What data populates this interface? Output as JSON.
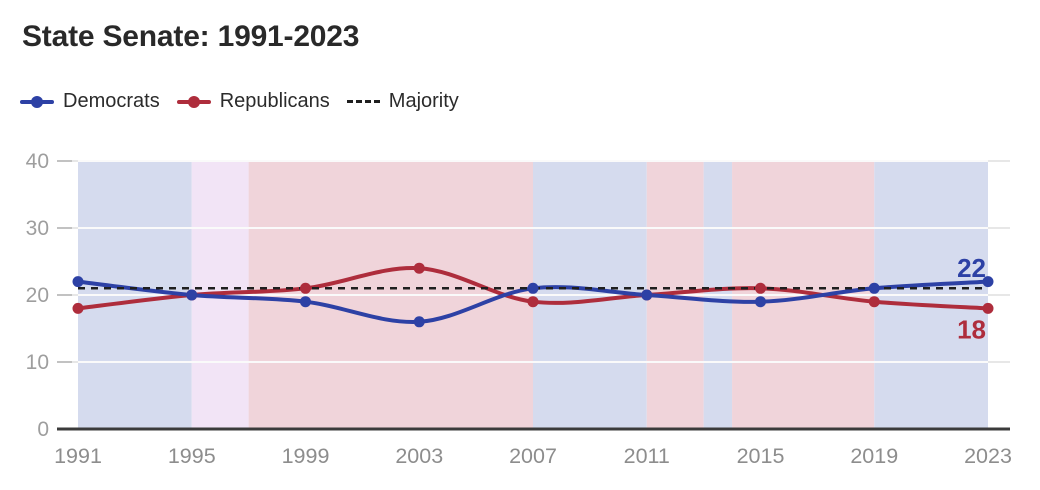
{
  "chart": {
    "title": "State Senate: 1991-2023",
    "legend": [
      {
        "label": "Democrats",
        "color": "#2d41a5",
        "marker": "line-dot"
      },
      {
        "label": "Republicans",
        "color": "#ae2d3c",
        "marker": "line-dot"
      },
      {
        "label": "Majority",
        "color": "#1f1f1f",
        "marker": "dashed-line"
      }
    ]
  },
  "chart_data": {
    "type": "line",
    "title": "State Senate: 1991-2023",
    "x": [
      1991,
      1995,
      1999,
      2003,
      2007,
      2011,
      2015,
      2019,
      2023
    ],
    "xticks": [
      1991,
      1995,
      1999,
      2003,
      2007,
      2011,
      2015,
      2019,
      2023
    ],
    "yticks": [
      0,
      10,
      20,
      30,
      40
    ],
    "ylim": [
      0,
      40
    ],
    "xlabel": "",
    "ylabel": "",
    "grid": true,
    "legend_position": "top-left",
    "series": [
      {
        "name": "Democrats",
        "color": "#2d41a5",
        "values": [
          22,
          20,
          19,
          16,
          21,
          20,
          19,
          21,
          22
        ],
        "end_label": "22",
        "end_label_position": "above"
      },
      {
        "name": "Republicans",
        "color": "#ae2d3c",
        "values": [
          18,
          20,
          21,
          24,
          19,
          20,
          21,
          19,
          18
        ],
        "end_label": "18",
        "end_label_position": "below"
      }
    ],
    "reference_line": {
      "name": "Majority",
      "value": 21,
      "style": "dashed",
      "color": "#1f1f1f"
    },
    "background_bands": [
      {
        "from": 1991,
        "to": 1995,
        "control": "democratic",
        "color": "#d5dbee"
      },
      {
        "from": 1995,
        "to": 1997,
        "control": "tie",
        "color": "#f2e4f6"
      },
      {
        "from": 1997,
        "to": 2007,
        "control": "republican",
        "color": "#f0d4da"
      },
      {
        "from": 2007,
        "to": 2011,
        "control": "democratic",
        "color": "#d5dbee"
      },
      {
        "from": 2011,
        "to": 2013,
        "control": "republican",
        "color": "#f0d4da"
      },
      {
        "from": 2013,
        "to": 2014,
        "control": "democratic",
        "color": "#d5dbee"
      },
      {
        "from": 2014,
        "to": 2019,
        "control": "republican",
        "color": "#f0d4da"
      },
      {
        "from": 2019,
        "to": 2023,
        "control": "democratic",
        "color": "#d5dbee"
      }
    ]
  }
}
